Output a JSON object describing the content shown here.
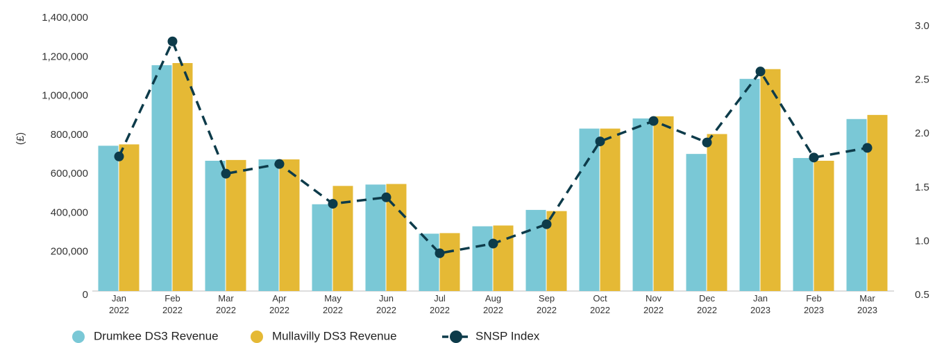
{
  "chart_data": {
    "type": "bar_line",
    "y_label": "(£)",
    "categories": [
      "Jan 2022",
      "Feb 2022",
      "Mar 2022",
      "Apr 2022",
      "May 2022",
      "Jun 2022",
      "Jul 2022",
      "Aug 2022",
      "Sep 2022",
      "Oct 2022",
      "Nov 2022",
      "Dec 2022",
      "Jan 2023",
      "Feb 2023",
      "Mar 2023"
    ],
    "series": [
      {
        "name": "Drumkee DS3 Revenue",
        "color": "#7ac8d6",
        "type": "bar",
        "values": [
          745000,
          1158000,
          668000,
          675000,
          445000,
          546000,
          294000,
          332000,
          416000,
          833000,
          885000,
          703000,
          1088000,
          682000,
          882000
        ]
      },
      {
        "name": "Mullavilly DS3 Revenue",
        "color": "#e5b935",
        "type": "bar",
        "values": [
          752000,
          1169000,
          672000,
          675000,
          539000,
          549000,
          297000,
          336000,
          410000,
          833000,
          896000,
          805000,
          1138000,
          668000,
          903000
        ]
      },
      {
        "name": "SNSP Index",
        "color": "#0d3b4a",
        "type": "line",
        "axis": "y2",
        "values": [
          1.79,
          2.86,
          1.63,
          1.72,
          1.35,
          1.41,
          0.89,
          0.98,
          1.16,
          1.93,
          2.12,
          1.92,
          2.58,
          1.78,
          1.87
        ]
      }
    ],
    "ylim": [
      0,
      1400000
    ],
    "yticks": [
      0,
      {
        "value": 200000,
        "label": "200,000"
      },
      {
        "value": 400000,
        "label": "400,000"
      },
      {
        "value": 600000,
        "label": "600,000"
      },
      {
        "value": 800000,
        "label": "800,000"
      },
      {
        "value": 1000000,
        "label": "1,000,000"
      },
      {
        "value": 1200000,
        "label": "1,200,000"
      },
      {
        "value": 1400000,
        "label": "1,400,000"
      }
    ],
    "y2lim": [
      0.5,
      3.0
    ],
    "y2ticks": [
      {
        "value": 0.5,
        "label": "0.5"
      },
      {
        "value": 1,
        "label": "1.0"
      },
      {
        "value": 1.5,
        "label": "1.5"
      },
      {
        "value": 2,
        "label": "2.0"
      },
      {
        "value": 2.5,
        "label": "2.5"
      },
      {
        "value": 3,
        "label": "3.0"
      }
    ],
    "grid": false
  }
}
